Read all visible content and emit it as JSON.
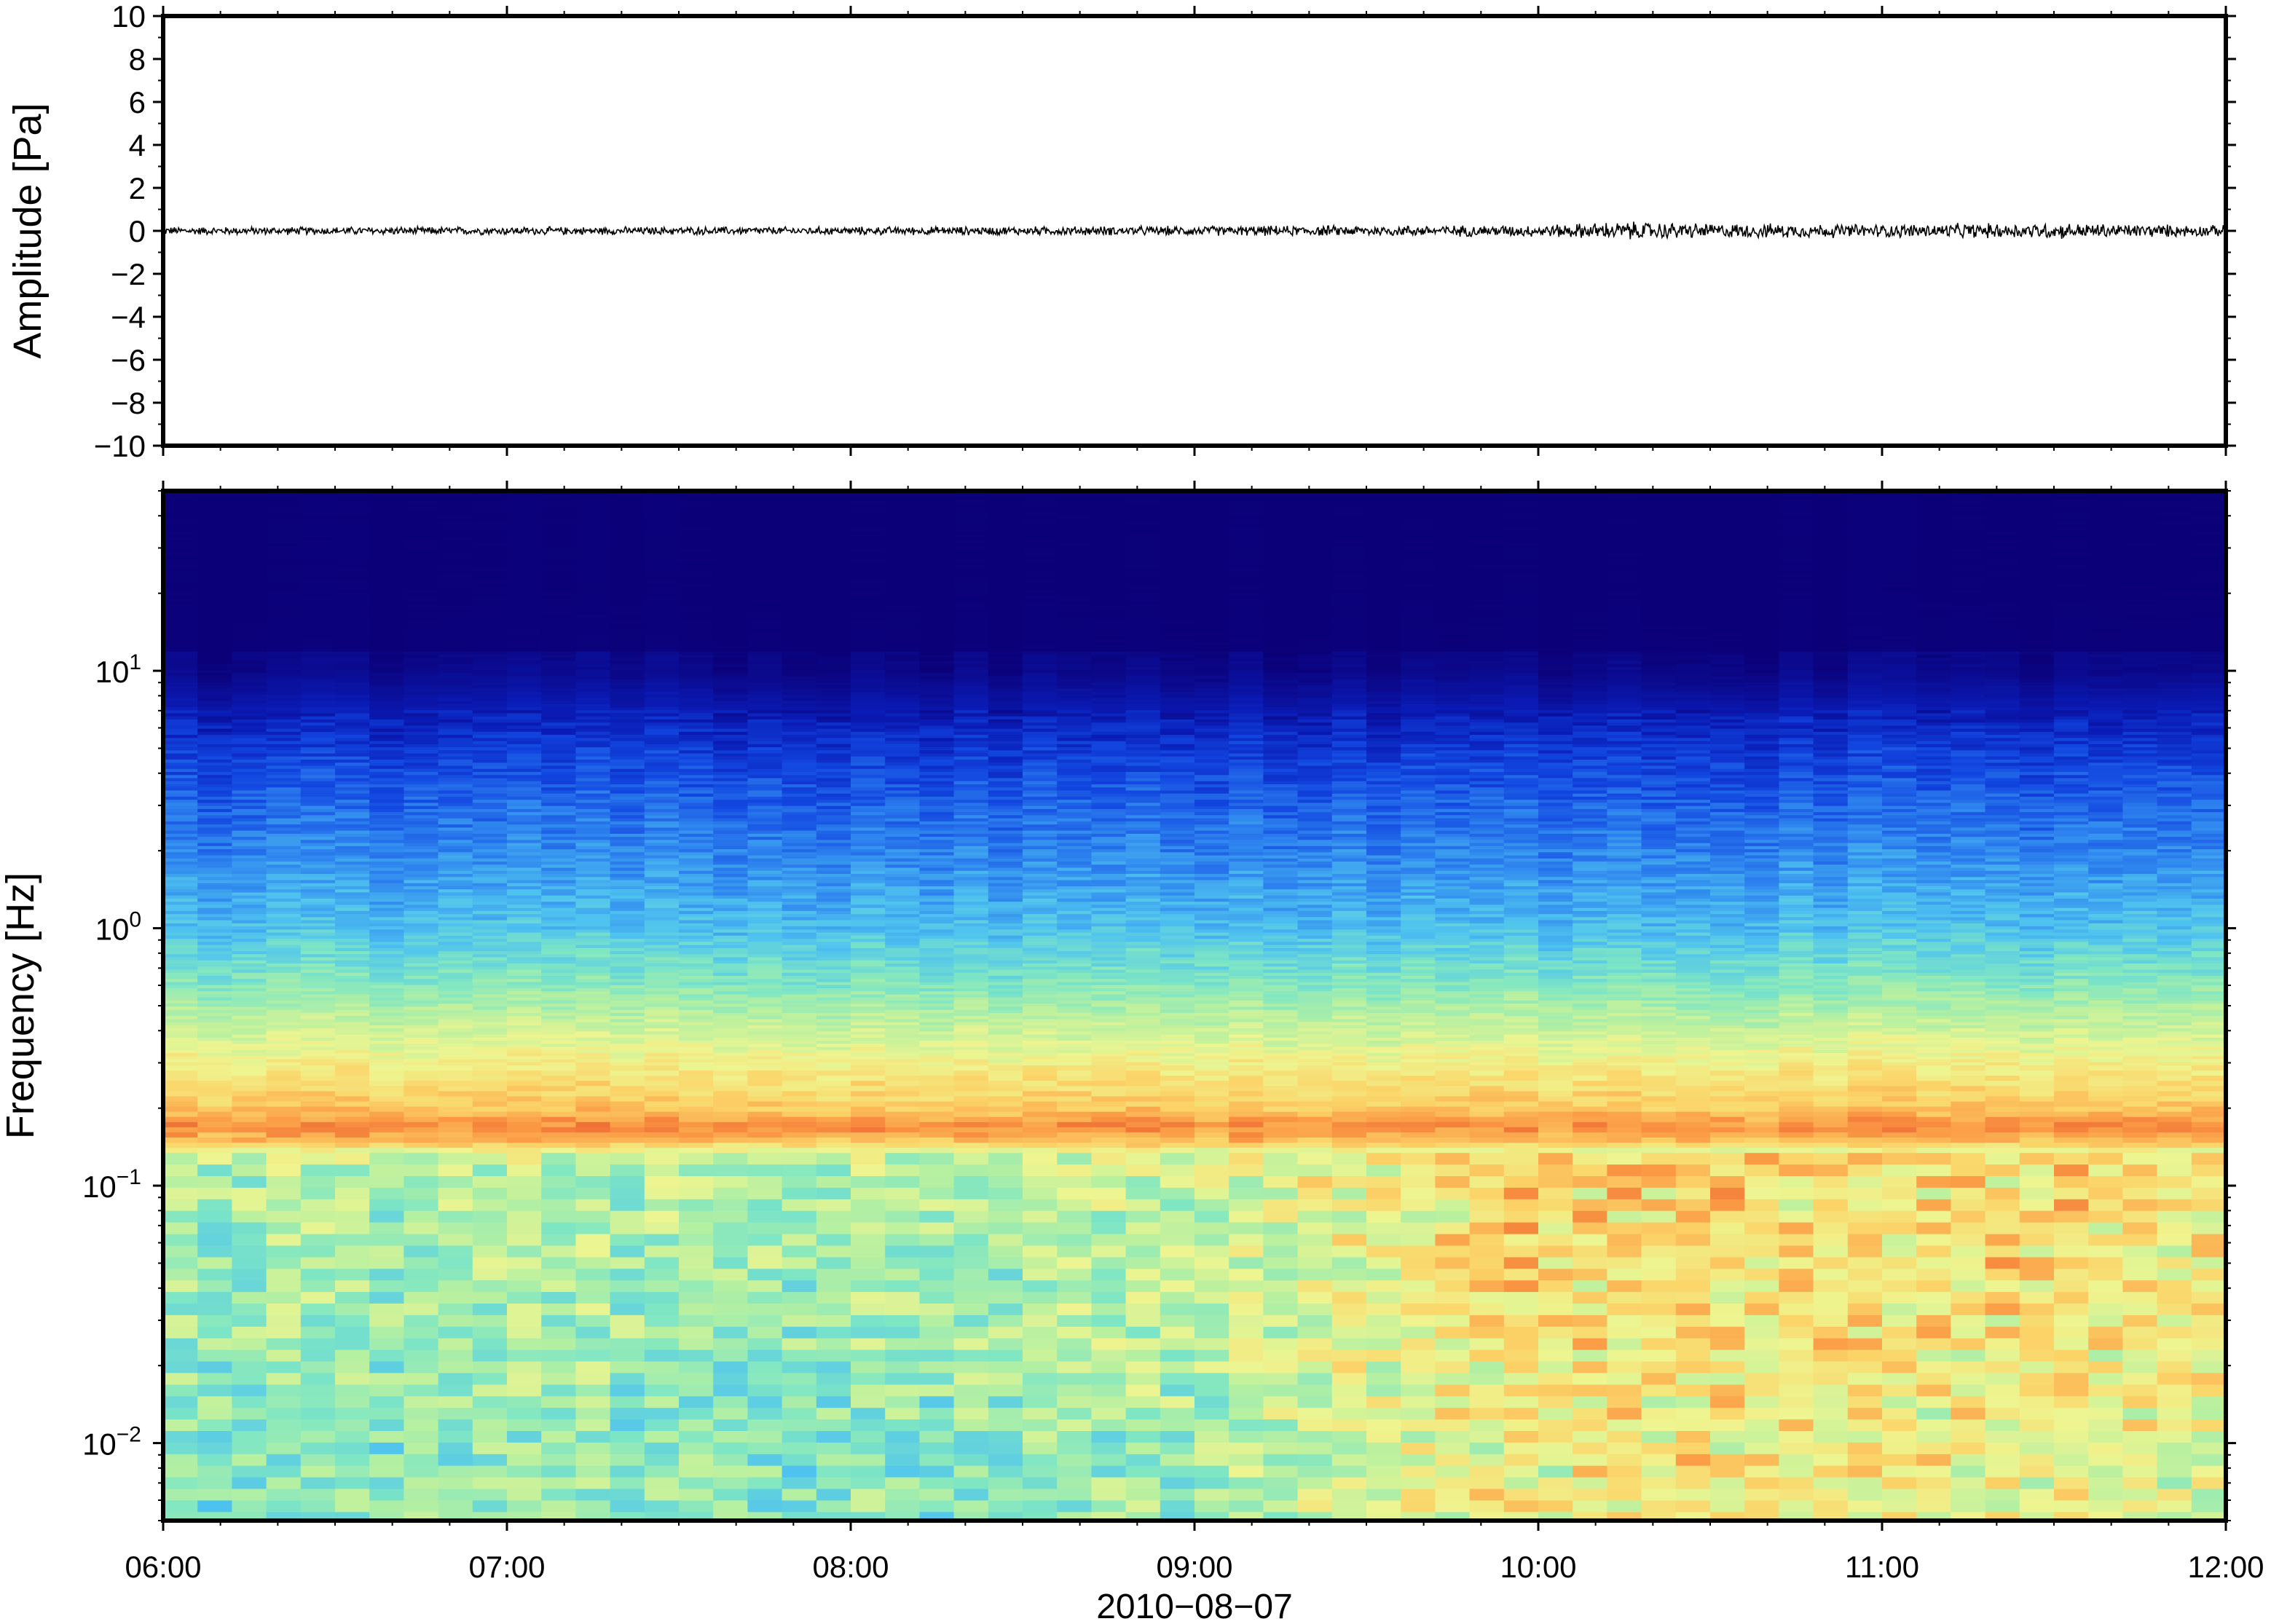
{
  "chart_data": [
    {
      "type": "line",
      "ylabel": "Amplitude [Pa]",
      "ylim": [
        -10,
        10
      ],
      "y_ticks": [
        {
          "value": 10,
          "label": "10"
        },
        {
          "value": 8,
          "label": "8"
        },
        {
          "value": 6,
          "label": "6"
        },
        {
          "value": 4,
          "label": "4"
        },
        {
          "value": 2,
          "label": "2"
        },
        {
          "value": 0,
          "label": "0"
        },
        {
          "value": -2,
          "label": "−2"
        },
        {
          "value": -4,
          "label": "−4"
        },
        {
          "value": -6,
          "label": "−6"
        },
        {
          "value": -8,
          "label": "−8"
        },
        {
          "value": -10,
          "label": "−10"
        }
      ],
      "xlim_hours": [
        6,
        12
      ],
      "series": [
        {
          "color": "#000000",
          "baseline": 0,
          "noise_envelope": {
            "x_hours": [
              6.0,
              7.0,
              8.0,
              9.0,
              10.0,
              10.25,
              10.5,
              11.0,
              11.5,
              12.0
            ],
            "amplitude_pa": [
              0.15,
              0.15,
              0.15,
              0.18,
              0.22,
              0.35,
              0.28,
              0.25,
              0.3,
              0.2
            ]
          }
        }
      ]
    },
    {
      "type": "heatmap",
      "ylabel": "Frequency [Hz]",
      "xlabel": "2010−08−07",
      "yscale": "log",
      "ylim": [
        0.005,
        50
      ],
      "y_ticks": [
        {
          "value": 0.01,
          "base": "10",
          "exp": "−2"
        },
        {
          "value": 0.1,
          "base": "10",
          "exp": "−1"
        },
        {
          "value": 1,
          "base": "10",
          "exp": "0"
        },
        {
          "value": 10,
          "base": "10",
          "exp": "1"
        }
      ],
      "xlim_hours": [
        6,
        12
      ],
      "x_ticks": [
        {
          "value": 6,
          "label": "06:00"
        },
        {
          "value": 7,
          "label": "07:00"
        },
        {
          "value": 8,
          "label": "08:00"
        },
        {
          "value": 9,
          "label": "09:00"
        },
        {
          "value": 10,
          "label": "10:00"
        },
        {
          "value": 11,
          "label": "11:00"
        },
        {
          "value": 12,
          "label": "12:00"
        }
      ],
      "colormap": [
        "#0b0077",
        "#0a1bb5",
        "#1246e0",
        "#2f86ef",
        "#4fc3ef",
        "#7ee6c4",
        "#b8f0a0",
        "#eef590",
        "#fbd468",
        "#fb9a45",
        "#ea5a2d"
      ],
      "spectral_profile": {
        "freq_hz": [
          50,
          20,
          10,
          8,
          5,
          3,
          2,
          1,
          0.6,
          0.4,
          0.3,
          0.2,
          0.17,
          0.15,
          0.13,
          0.1,
          0.05,
          0.03,
          0.02,
          0.01,
          0.005
        ],
        "level": [
          0.0,
          0.0,
          0.03,
          0.07,
          0.17,
          0.25,
          0.3,
          0.4,
          0.52,
          0.64,
          0.72,
          0.82,
          0.92,
          0.85,
          0.62,
          0.58,
          0.57,
          0.56,
          0.55,
          0.52,
          0.52
        ]
      },
      "low_frequency_activity": {
        "x_hours": [
          6.0,
          8.0,
          9.0,
          9.5,
          10.0,
          10.5,
          11.0,
          11.5,
          12.0
        ],
        "level_boost": [
          0.0,
          0.0,
          0.05,
          0.15,
          0.22,
          0.25,
          0.18,
          0.22,
          0.15
        ]
      }
    }
  ]
}
